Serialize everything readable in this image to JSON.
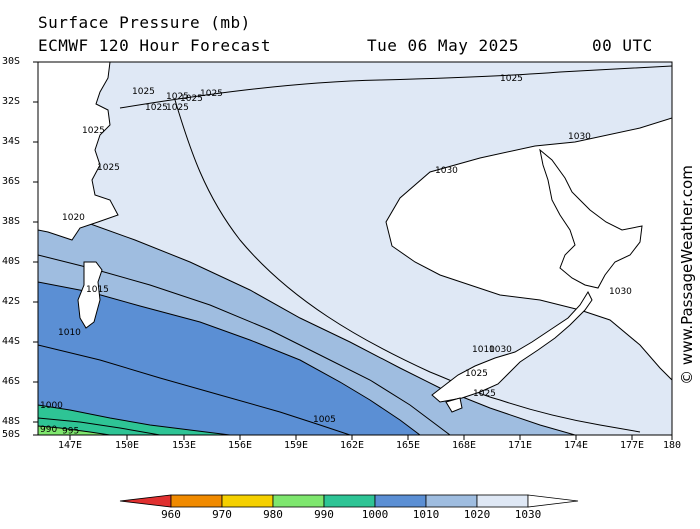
{
  "header": {
    "title": "Surface Pressure (mb)",
    "model": "ECMWF 120 Hour Forecast",
    "date": "Tue 06 May 2025",
    "time": "00 UTC"
  },
  "watermark": "© www.PassageWeather.com",
  "lat_labels": [
    "30S",
    "32S",
    "34S",
    "36S",
    "38S",
    "40S",
    "42S",
    "44S",
    "46S",
    "48S",
    "50S"
  ],
  "lon_labels": [
    "147E",
    "150E",
    "153E",
    "156E",
    "159E",
    "162E",
    "165E",
    "168E",
    "171E",
    "174E",
    "177E",
    "180"
  ],
  "legend": {
    "labels": [
      "960",
      "970",
      "980",
      "990",
      "1000",
      "1010",
      "1020",
      "1030"
    ],
    "colors": [
      "#e03030",
      "#f08a00",
      "#f5d000",
      "#7ee66e",
      "#2ec495",
      "#5b8fd4",
      "#9fbde0",
      "#dfe8f5",
      "#ffffff"
    ]
  },
  "isobar_labels": [
    "1025",
    "1025",
    "1025",
    "1025",
    "1025",
    "1025",
    "1025",
    "1025",
    "1030",
    "1030",
    "1030",
    "1020",
    "1015",
    "1010",
    "1000",
    "995",
    "990",
    "1005",
    "1010",
    "1030",
    "1025",
    "1025"
  ],
  "colors": {
    "fill_1025": "#dfe8f5",
    "fill_1030": "#ffffff",
    "fill_1020": "#9fbde0",
    "fill_1010": "#5b8fd4",
    "fill_990": "#2ec495",
    "fill_980": "#7ee66e"
  }
}
